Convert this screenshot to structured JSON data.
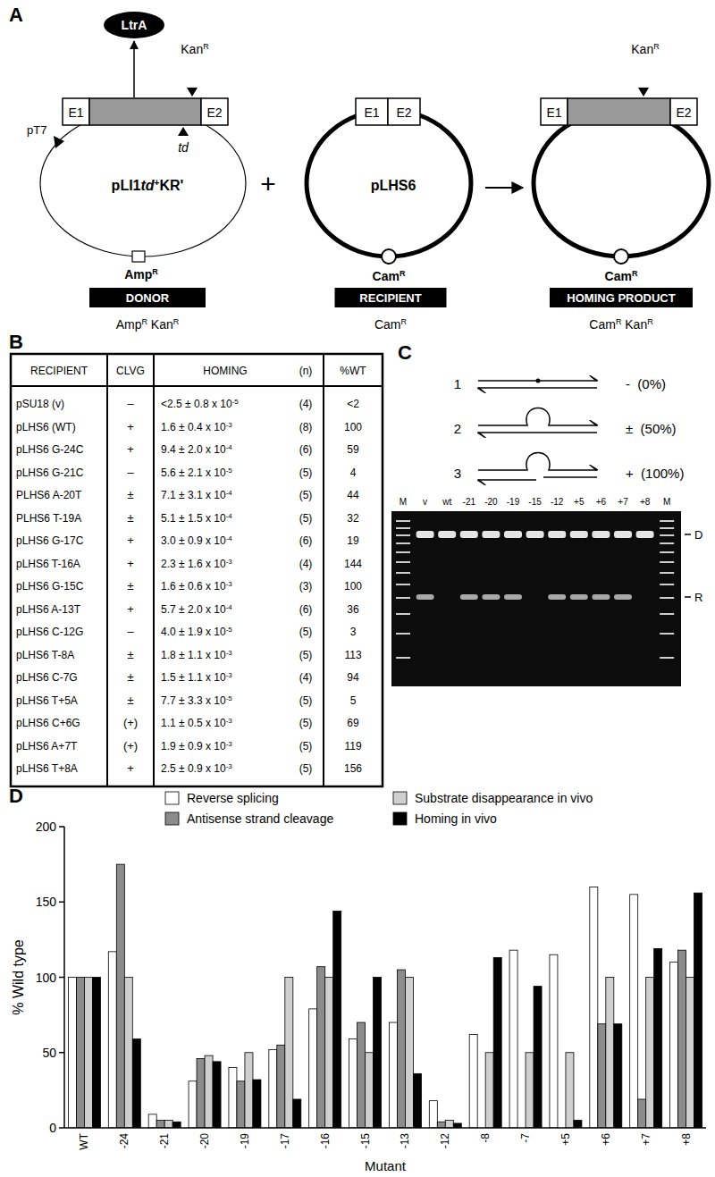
{
  "panel_a": {
    "label": "A",
    "donor": {
      "protein": "LtrA",
      "kan": [
        {
          "text": "Kan"
        },
        {
          "text": "R",
          "sup": true
        }
      ],
      "exon1": "E1",
      "exon2": "E2",
      "promoter": "pT7",
      "td": [
        {
          "text": "td",
          "italic": true
        }
      ],
      "name": [
        {
          "text": "pLI1"
        },
        {
          "text": "td",
          "italic": true
        },
        {
          "text": "+",
          "sup": true
        },
        {
          "text": "KR'"
        }
      ],
      "amp": [
        {
          "text": "Amp"
        },
        {
          "text": "R",
          "sup": true
        }
      ],
      "caption": "DONOR",
      "phenotype": [
        {
          "text": "Amp"
        },
        {
          "text": "R",
          "sup": true
        },
        {
          "text": " Kan"
        },
        {
          "text": "R",
          "sup": true
        }
      ]
    },
    "plus": "+",
    "recipient": {
      "exon1": "E1",
      "exon2": "E2",
      "name": "pLHS6",
      "cam": [
        {
          "text": "Cam"
        },
        {
          "text": "R",
          "sup": true
        }
      ],
      "caption": "RECIPIENT",
      "phenotype": [
        {
          "text": "Cam"
        },
        {
          "text": "R",
          "sup": true
        }
      ]
    },
    "product": {
      "kan": [
        {
          "text": "Kan"
        },
        {
          "text": "R",
          "sup": true
        }
      ],
      "exon1": "E1",
      "exon2": "E2",
      "cam": [
        {
          "text": "Cam"
        },
        {
          "text": "R",
          "sup": true
        }
      ],
      "caption": "HOMING PRODUCT",
      "phenotype": [
        {
          "text": "Cam"
        },
        {
          "text": "R",
          "sup": true
        },
        {
          "text": " Kan"
        },
        {
          "text": "R",
          "sup": true
        }
      ]
    }
  },
  "panel_b": {
    "label": "B",
    "columns": [
      "RECIPIENT",
      "CLVG",
      "HOMING",
      "(n)",
      "%WT"
    ],
    "rows": [
      {
        "recipient": "pSU18 (v)",
        "clvg": "–",
        "homing": "<2.5 ± 0.8 x 10",
        "exp": "-5",
        "n": "(4)",
        "pct": "<2"
      },
      {
        "recipient": "pLHS6 (WT)",
        "clvg": "+",
        "homing": "1.6 ± 0.4 x 10",
        "exp": "-3",
        "n": "(8)",
        "pct": "100"
      },
      {
        "recipient": "pLHS6 G-24C",
        "clvg": "+",
        "homing": "9.4 ± 2.0 x 10",
        "exp": "-4",
        "n": "(6)",
        "pct": "59"
      },
      {
        "recipient": "pLHS6 G-21C",
        "clvg": "–",
        "homing": "5.6 ± 2.1 x 10",
        "exp": "-5",
        "n": "(5)",
        "pct": "4"
      },
      {
        "recipient": "PLHS6 A-20T",
        "clvg": "±",
        "homing": "7.1 ± 3.1 x 10",
        "exp": "-4",
        "n": "(5)",
        "pct": "44"
      },
      {
        "recipient": "PLHS6 T-19A",
        "clvg": "±",
        "homing": "5.1 ± 1.5 x 10",
        "exp": "-4",
        "n": "(5)",
        "pct": "32"
      },
      {
        "recipient": "pLHS6 G-17C",
        "clvg": "+",
        "homing": "3.0 ± 0.9 x 10",
        "exp": "-4",
        "n": "(6)",
        "pct": "19"
      },
      {
        "recipient": "pLHS6 T-16A",
        "clvg": "+",
        "homing": "2.3 ± 1.6 x 10",
        "exp": "-3",
        "n": "(4)",
        "pct": "144"
      },
      {
        "recipient": "pLHS6 G-15C",
        "clvg": "±",
        "homing": "1.6 ± 0.6 x 10",
        "exp": "-3",
        "n": "(3)",
        "pct": "100"
      },
      {
        "recipient": "pLHS6 A-13T",
        "clvg": "+",
        "homing": "5.7 ± 2.0 x 10",
        "exp": "-4",
        "n": "(6)",
        "pct": "36"
      },
      {
        "recipient": "pLHS6 C-12G",
        "clvg": "–",
        "homing": "4.0 ± 1.9 x 10",
        "exp": "-5",
        "n": "(5)",
        "pct": "3"
      },
      {
        "recipient": "pLHS6 T-8A",
        "clvg": "±",
        "homing": "1.8 ± 1.1 x 10",
        "exp": "-3",
        "n": "(5)",
        "pct": "113"
      },
      {
        "recipient": "pLHS6 C-7G",
        "clvg": "±",
        "homing": "1.5 ± 1.1 x 10",
        "exp": "-3",
        "n": "(4)",
        "pct": "94"
      },
      {
        "recipient": "pLHS6 T+5A",
        "clvg": "±",
        "homing": "7.7 ± 3.3 x 10",
        "exp": "-5",
        "n": "(5)",
        "pct": "5"
      },
      {
        "recipient": "pLHS6 C+6G",
        "clvg": "(+)",
        "homing": "1.1 ± 0.5 x 10",
        "exp": "-3",
        "n": "(5)",
        "pct": "69"
      },
      {
        "recipient": "pLHS6 A+7T",
        "clvg": "(+)",
        "homing": "1.9 ± 0.9 x 10",
        "exp": "-3",
        "n": "(5)",
        "pct": "119"
      },
      {
        "recipient": "pLHS6 T+8A",
        "clvg": "+",
        "homing": "2.5 ± 0.9 x 10",
        "exp": "-3",
        "n": "(5)",
        "pct": "156"
      }
    ]
  },
  "panel_c": {
    "label": "C",
    "schematics": [
      {
        "number": "1",
        "result": "-  (0%)"
      },
      {
        "number": "2",
        "result": "±  (50%)"
      },
      {
        "number": "3",
        "result": "+  (100%)"
      }
    ],
    "gel": {
      "lanes": [
        {
          "label": "M",
          "marker": true
        },
        {
          "label": "v",
          "r_band": true
        },
        {
          "label": "wt",
          "r_band": false
        },
        {
          "label": "-21",
          "r_band": true
        },
        {
          "label": "-20",
          "r_band": true
        },
        {
          "label": "-19",
          "r_band": true
        },
        {
          "label": "-15",
          "r_band": false
        },
        {
          "label": "-12",
          "r_band": true
        },
        {
          "label": "+5",
          "r_band": true
        },
        {
          "label": "+6",
          "r_band": true
        },
        {
          "label": "+7",
          "r_band": true
        },
        {
          "label": "+8",
          "r_band": false
        },
        {
          "label": "M",
          "marker": true
        }
      ],
      "band_labels": [
        "D",
        "R"
      ]
    }
  },
  "panel_d": {
    "label": "D"
  },
  "chart_data": {
    "type": "bar",
    "x_label": "Mutant",
    "y_label": "% Wild type",
    "categories": [
      "WT",
      "-24",
      "-21",
      "-20",
      "-19",
      "-17",
      "-16",
      "-15",
      "-13",
      "-12",
      "-8",
      "-7",
      "+5",
      "+6",
      "+7",
      "+8"
    ],
    "series": [
      {
        "name": "Reverse splicing",
        "color": "#ffffff",
        "values": [
          100,
          117,
          9,
          31,
          40,
          52,
          79,
          59,
          70,
          18,
          62,
          118,
          115,
          160,
          155,
          110
        ]
      },
      {
        "name": "Antisense strand cleavage",
        "color": "#8c8c8c",
        "values": [
          100,
          175,
          5,
          46,
          31,
          55,
          107,
          70,
          105,
          4,
          null,
          null,
          null,
          69,
          19,
          118
        ]
      },
      {
        "name": "Substrate disappearance in vivo",
        "color": "#cfcfcf",
        "values": [
          100,
          100,
          5,
          48,
          50,
          100,
          100,
          50,
          100,
          5,
          50,
          50,
          50,
          100,
          100,
          100
        ]
      },
      {
        "name": "Homing in vivo",
        "color": "#000000",
        "values": [
          100,
          59,
          4,
          44,
          32,
          19,
          144,
          100,
          36,
          3,
          113,
          94,
          5,
          69,
          119,
          156
        ]
      }
    ],
    "ylim": [
      0,
      200
    ],
    "yticks": [
      0,
      50,
      100,
      150,
      200
    ],
    "grid": false,
    "legend": "top"
  }
}
